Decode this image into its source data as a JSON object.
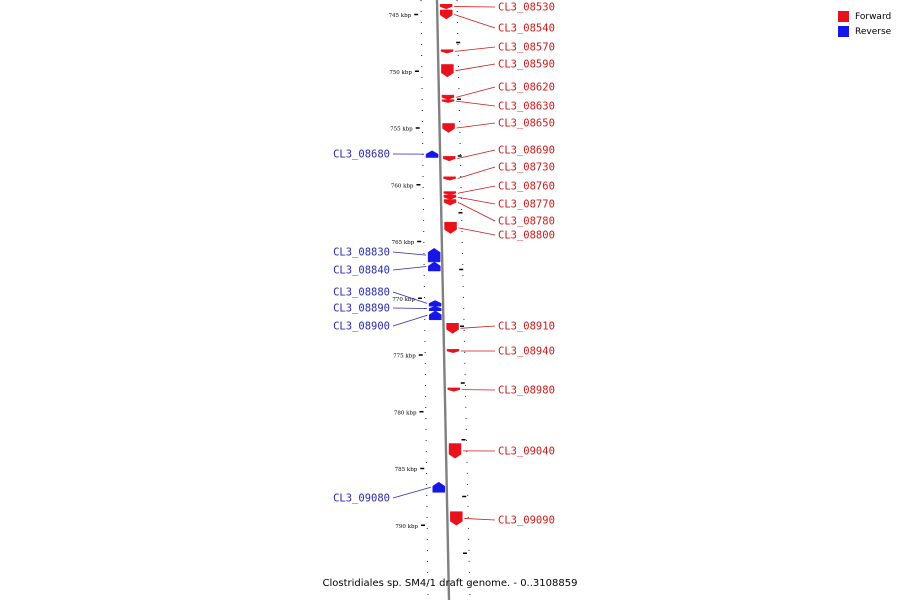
{
  "colors": {
    "forward": "#e8121c",
    "reverse": "#1616e8",
    "backbone": "#808080",
    "label_forward": "#cc1a1a",
    "label_reverse": "#2a2aaa"
  },
  "legend": [
    {
      "label": "Forward",
      "color": "#e8121c"
    },
    {
      "label": "Reverse",
      "color": "#1616e8"
    }
  ],
  "caption": "Clostridiales sp. SM4/1 draft genome. - 0..3108859",
  "axis": {
    "unit": "kbp",
    "ticks": [
      {
        "kbp": 745,
        "label": "745 kbp"
      },
      {
        "kbp": 750,
        "label": "750 kbp"
      },
      {
        "kbp": 755,
        "label": "755 kbp"
      },
      {
        "kbp": 760,
        "label": "760 kbp"
      },
      {
        "kbp": 765,
        "label": "765 kbp"
      },
      {
        "kbp": 770,
        "label": "770 kbp"
      },
      {
        "kbp": 775,
        "label": "775 kbp"
      },
      {
        "kbp": 780,
        "label": "780 kbp"
      },
      {
        "kbp": 785,
        "label": "785 kbp"
      },
      {
        "kbp": 790,
        "label": "790 kbp"
      }
    ]
  },
  "genes": [
    {
      "id": "CL3_08530",
      "strand": "forward",
      "start": 744.1,
      "end": 744.5
    },
    {
      "id": "CL3_08540",
      "strand": "forward",
      "start": 744.6,
      "end": 745.4
    },
    {
      "id": "CL3_08570",
      "strand": "forward",
      "start": 748.1,
      "end": 748.4
    },
    {
      "id": "CL3_08590",
      "strand": "forward",
      "start": 749.4,
      "end": 750.5
    },
    {
      "id": "CL3_08620",
      "strand": "forward",
      "start": 752.1,
      "end": 752.5
    },
    {
      "id": "CL3_08630",
      "strand": "forward",
      "start": 752.5,
      "end": 752.7
    },
    {
      "id": "CL3_08650",
      "strand": "forward",
      "start": 754.6,
      "end": 755.4
    },
    {
      "id": "CL3_08680",
      "strand": "reverse",
      "start": 757.0,
      "end": 757.6
    },
    {
      "id": "CL3_08690",
      "strand": "forward",
      "start": 757.5,
      "end": 757.9
    },
    {
      "id": "CL3_08730",
      "strand": "forward",
      "start": 759.3,
      "end": 759.6
    },
    {
      "id": "CL3_08760",
      "strand": "forward",
      "start": 760.6,
      "end": 760.9
    },
    {
      "id": "CL3_08770",
      "strand": "forward",
      "start": 760.9,
      "end": 761.3
    },
    {
      "id": "CL3_08780",
      "strand": "forward",
      "start": 761.3,
      "end": 761.8
    },
    {
      "id": "CL3_08800",
      "strand": "forward",
      "start": 763.3,
      "end": 764.3
    },
    {
      "id": "CL3_08830",
      "strand": "reverse",
      "start": 765.6,
      "end": 766.8
    },
    {
      "id": "CL3_08840",
      "strand": "reverse",
      "start": 766.8,
      "end": 767.6
    },
    {
      "id": "CL3_08880",
      "strand": "reverse",
      "start": 770.2,
      "end": 770.7
    },
    {
      "id": "CL3_08890",
      "strand": "reverse",
      "start": 770.7,
      "end": 771.1
    },
    {
      "id": "CL3_08900",
      "strand": "reverse",
      "start": 771.1,
      "end": 771.9
    },
    {
      "id": "CL3_08910",
      "strand": "forward",
      "start": 772.2,
      "end": 773.1
    },
    {
      "id": "CL3_08940",
      "strand": "forward",
      "start": 774.5,
      "end": 774.8
    },
    {
      "id": "CL3_08980",
      "strand": "forward",
      "start": 777.9,
      "end": 778.2
    },
    {
      "id": "CL3_09040",
      "strand": "forward",
      "start": 782.8,
      "end": 784.1
    },
    {
      "id": "CL3_09080",
      "strand": "reverse",
      "start": 786.2,
      "end": 787.1
    },
    {
      "id": "CL3_09090",
      "strand": "forward",
      "start": 788.8,
      "end": 790.0
    }
  ]
}
